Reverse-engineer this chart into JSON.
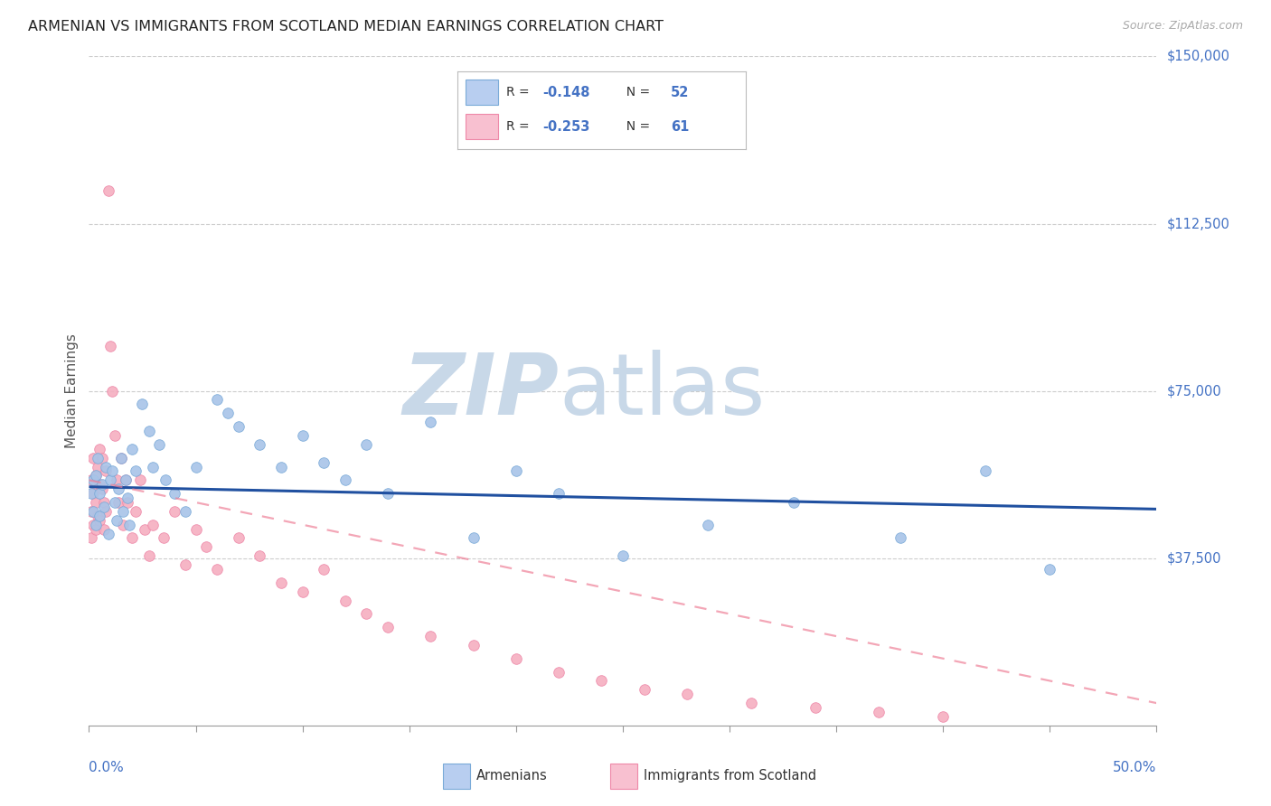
{
  "title": "ARMENIAN VS IMMIGRANTS FROM SCOTLAND MEDIAN EARNINGS CORRELATION CHART",
  "source": "Source: ZipAtlas.com",
  "ylabel": "Median Earnings",
  "xmin": 0.0,
  "xmax": 0.5,
  "ymin": 0,
  "ymax": 150000,
  "r_armenians": -0.148,
  "n_armenians": 52,
  "r_scotland": -0.253,
  "n_scotland": 61,
  "blue_scatter_color": "#a8c4e8",
  "blue_scatter_edge": "#7aaad8",
  "pink_scatter_color": "#f5aec0",
  "pink_scatter_edge": "#ee88a8",
  "blue_line_color": "#2050a0",
  "pink_line_color": "#ee8098",
  "grid_color": "#cccccc",
  "watermark_zip_color": "#c8d8e8",
  "watermark_atlas_color": "#c8d8e8",
  "title_color": "#222222",
  "axis_val_color": "#4472c4",
  "blue_trend": [
    0.0,
    53500,
    0.5,
    48500
  ],
  "pink_trend": [
    0.0,
    55000,
    0.5,
    5000
  ],
  "ytick_vals": [
    37500,
    75000,
    112500,
    150000
  ],
  "ytick_labels": [
    "$37,500",
    "$75,000",
    "$112,500",
    "$150,000"
  ],
  "armenians_x": [
    0.001,
    0.002,
    0.002,
    0.003,
    0.003,
    0.004,
    0.005,
    0.005,
    0.006,
    0.007,
    0.008,
    0.009,
    0.01,
    0.011,
    0.012,
    0.013,
    0.014,
    0.015,
    0.016,
    0.017,
    0.018,
    0.019,
    0.02,
    0.022,
    0.025,
    0.028,
    0.03,
    0.033,
    0.036,
    0.04,
    0.045,
    0.05,
    0.06,
    0.065,
    0.07,
    0.08,
    0.09,
    0.1,
    0.11,
    0.12,
    0.13,
    0.14,
    0.16,
    0.18,
    0.2,
    0.22,
    0.25,
    0.29,
    0.33,
    0.38,
    0.42,
    0.45
  ],
  "armenians_y": [
    52000,
    55000,
    48000,
    56000,
    45000,
    60000,
    52000,
    47000,
    54000,
    49000,
    58000,
    43000,
    55000,
    57000,
    50000,
    46000,
    53000,
    60000,
    48000,
    55000,
    51000,
    45000,
    62000,
    57000,
    72000,
    66000,
    58000,
    63000,
    55000,
    52000,
    48000,
    58000,
    73000,
    70000,
    67000,
    63000,
    58000,
    65000,
    59000,
    55000,
    63000,
    52000,
    68000,
    42000,
    57000,
    52000,
    38000,
    45000,
    50000,
    42000,
    57000,
    35000
  ],
  "scotland_x": [
    0.001,
    0.001,
    0.001,
    0.002,
    0.002,
    0.002,
    0.003,
    0.003,
    0.003,
    0.004,
    0.004,
    0.005,
    0.005,
    0.005,
    0.006,
    0.006,
    0.007,
    0.007,
    0.008,
    0.008,
    0.009,
    0.01,
    0.011,
    0.012,
    0.013,
    0.014,
    0.015,
    0.016,
    0.017,
    0.018,
    0.02,
    0.022,
    0.024,
    0.026,
    0.028,
    0.03,
    0.035,
    0.04,
    0.045,
    0.05,
    0.055,
    0.06,
    0.07,
    0.08,
    0.09,
    0.1,
    0.11,
    0.12,
    0.13,
    0.14,
    0.16,
    0.18,
    0.2,
    0.22,
    0.24,
    0.26,
    0.28,
    0.31,
    0.34,
    0.37,
    0.4
  ],
  "scotland_y": [
    55000,
    48000,
    42000,
    60000,
    52000,
    45000,
    56000,
    50000,
    44000,
    58000,
    47000,
    62000,
    54000,
    46000,
    53000,
    60000,
    50000,
    44000,
    57000,
    48000,
    120000,
    85000,
    75000,
    65000,
    55000,
    50000,
    60000,
    45000,
    55000,
    50000,
    42000,
    48000,
    55000,
    44000,
    38000,
    45000,
    42000,
    48000,
    36000,
    44000,
    40000,
    35000,
    42000,
    38000,
    32000,
    30000,
    35000,
    28000,
    25000,
    22000,
    20000,
    18000,
    15000,
    12000,
    10000,
    8000,
    7000,
    5000,
    4000,
    3000,
    2000
  ]
}
